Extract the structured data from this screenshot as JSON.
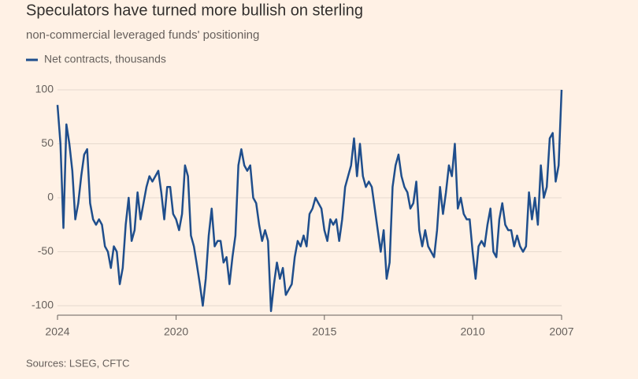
{
  "chart_data": {
    "type": "line",
    "title": "Speculators have turned more bullish on sterling",
    "subtitle": "non-commercial leveraged funds' positioning",
    "source": "Sources: LSEG, CFTC",
    "x": [
      2024,
      2023.9,
      2023.8,
      2023.7,
      2023.6,
      2023.5,
      2023.4,
      2023.3,
      2023.2,
      2023.1,
      2023,
      2022.9,
      2022.8,
      2022.7,
      2022.6,
      2022.5,
      2022.4,
      2022.3,
      2022.2,
      2022.1,
      2022,
      2021.9,
      2021.8,
      2021.7,
      2021.6,
      2021.5,
      2021.4,
      2021.3,
      2021.2,
      2021.1,
      2021,
      2020.9,
      2020.8,
      2020.7,
      2020.6,
      2020.5,
      2020.4,
      2020.3,
      2020.2,
      2020.1,
      2020,
      2019.9,
      2019.8,
      2019.7,
      2019.6,
      2019.5,
      2019.4,
      2019.3,
      2019.2,
      2019.1,
      2019,
      2018.9,
      2018.8,
      2018.7,
      2018.6,
      2018.5,
      2018.4,
      2018.3,
      2018.2,
      2018.1,
      2018,
      2017.9,
      2017.8,
      2017.7,
      2017.6,
      2017.5,
      2017.4,
      2017.3,
      2017.2,
      2017.1,
      2017,
      2016.9,
      2016.8,
      2016.7,
      2016.6,
      2016.5,
      2016.4,
      2016.3,
      2016.2,
      2016.1,
      2016,
      2015.9,
      2015.8,
      2015.7,
      2015.6,
      2015.5,
      2015.4,
      2015.3,
      2015.2,
      2015.1,
      2015,
      2014.9,
      2014.8,
      2014.7,
      2014.6,
      2014.5,
      2014.4,
      2014.3,
      2014.2,
      2014.1,
      2014,
      2013.9,
      2013.8,
      2013.7,
      2013.6,
      2013.5,
      2013.4,
      2013.3,
      2013.2,
      2013.1,
      2013,
      2012.9,
      2012.8,
      2012.7,
      2012.6,
      2012.5,
      2012.4,
      2012.3,
      2012.2,
      2012.1,
      2012,
      2011.9,
      2011.8,
      2011.7,
      2011.6,
      2011.5,
      2011.4,
      2011.3,
      2011.2,
      2011.1,
      2011,
      2010.9,
      2010.8,
      2010.7,
      2010.6,
      2010.5,
      2010.4,
      2010.3,
      2010.2,
      2010.1,
      2010,
      2009.9,
      2009.8,
      2009.7,
      2009.6,
      2009.5,
      2009.4,
      2009.3,
      2009.2,
      2009.1,
      2009,
      2008.9,
      2008.8,
      2008.7,
      2008.6,
      2008.5,
      2008.4,
      2008.3,
      2008.2,
      2008.1,
      2008,
      2007.9,
      2007.8,
      2007.7,
      2007.6,
      2007.5,
      2007.4,
      2007.3,
      2007.2,
      2007.1,
      2007
    ],
    "series": [
      {
        "name": "Net contracts, thousands",
        "color": "#1f4e8c",
        "values": [
          86,
          50,
          -28,
          68,
          50,
          25,
          -20,
          -5,
          20,
          40,
          45,
          -5,
          -20,
          -25,
          -20,
          -25,
          -45,
          -50,
          -65,
          -45,
          -50,
          -80,
          -65,
          -25,
          0,
          -40,
          -30,
          5,
          -20,
          -5,
          10,
          20,
          15,
          20,
          25,
          5,
          -20,
          10,
          10,
          -15,
          -20,
          -30,
          -15,
          30,
          20,
          -35,
          -45,
          -62,
          -80,
          -100,
          -75,
          -35,
          -10,
          -45,
          -40,
          -40,
          -60,
          -55,
          -80,
          -55,
          -35,
          30,
          45,
          30,
          25,
          30,
          0,
          -5,
          -25,
          -40,
          -30,
          -40,
          -105,
          -80,
          -60,
          -75,
          -65,
          -90,
          -85,
          -80,
          -55,
          -40,
          -45,
          -35,
          -45,
          -15,
          -10,
          0,
          -5,
          -10,
          -30,
          -40,
          -20,
          -25,
          -20,
          -40,
          -20,
          10,
          20,
          30,
          55,
          20,
          50,
          20,
          10,
          15,
          10,
          -10,
          -30,
          -50,
          -30,
          -75,
          -60,
          10,
          30,
          40,
          20,
          10,
          5,
          -10,
          -5,
          15,
          -30,
          -45,
          -30,
          -45,
          -50,
          -55,
          -30,
          10,
          -15,
          5,
          30,
          20,
          50,
          -10,
          0,
          -15,
          -20,
          -20,
          -50,
          -75,
          -45,
          -40,
          -45,
          -25,
          -10,
          -50,
          -55,
          -20,
          -5,
          -25,
          -30,
          -30,
          -45,
          -35,
          -45,
          -50,
          -45,
          5,
          -20,
          0,
          -25,
          30,
          0,
          10,
          55,
          60,
          15,
          30,
          100
        ]
      }
    ],
    "xlim": [
      2024,
      2007
    ],
    "xticks": [
      2024,
      2020,
      2015,
      2010,
      2007
    ],
    "ylim": [
      -100,
      100
    ],
    "yticks": [
      -100,
      -50,
      0,
      50,
      100
    ],
    "grid": true
  }
}
